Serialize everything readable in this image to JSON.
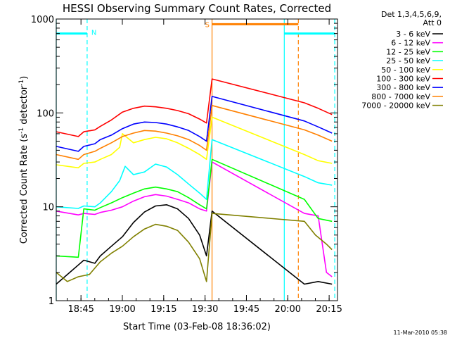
{
  "chart_data": {
    "type": "line",
    "title": "HESSI Observing Summary Count Rates, Corrected",
    "ylabel_prefix": "Corrected Count Rate (s",
    "ylabel_sup1": "-1",
    "ylabel_mid": " detector",
    "ylabel_sup2": "-1",
    "ylabel_suffix": ")",
    "xlabel": "Start Time (03-Feb-08 18:36:02)",
    "yscale": "log",
    "ylim": [
      1,
      1000
    ],
    "xlim": [
      0,
      102
    ],
    "xlim_note": "minutes since 18:36:02",
    "x_ticks": [
      {
        "label": "18:45",
        "value": 8.97
      },
      {
        "label": "19:00",
        "value": 23.97
      },
      {
        "label": "19:15",
        "value": 38.97
      },
      {
        "label": "19:30",
        "value": 53.97
      },
      {
        "label": "19:45",
        "value": 68.97
      },
      {
        "label": "20:00",
        "value": 83.97
      },
      {
        "label": "20:15",
        "value": 98.97
      }
    ],
    "y_ticks": [
      {
        "label": "1",
        "value": 1
      },
      {
        "label": "10",
        "value": 10
      },
      {
        "label": "100",
        "value": 100
      },
      {
        "label": "1000",
        "value": 1000
      }
    ],
    "legend_header": [
      "Det 1,3,4,5,6,9,",
      "Att 0"
    ],
    "legend_position": "outside-right",
    "footer": "11-Mar-2010 05:38",
    "series": [
      {
        "name": "3 - 6 keV",
        "color": "#000000",
        "x": [
          0,
          8,
          10,
          14,
          16,
          20,
          24,
          28,
          32,
          36,
          40,
          44,
          48,
          52,
          54.5,
          56.5,
          90,
          95,
          100
        ],
        "y": [
          1.5,
          2.4,
          2.7,
          2.5,
          3.0,
          3.8,
          4.8,
          6.8,
          8.8,
          10.2,
          10.5,
          9.5,
          7.5,
          5.0,
          3.0,
          9.0,
          1.5,
          1.6,
          1.5
        ]
      },
      {
        "name": "6 - 12 keV",
        "color": "#ff00ff",
        "x": [
          0,
          8,
          10,
          14,
          16,
          20,
          24,
          28,
          32,
          36,
          40,
          44,
          48,
          52,
          54.5,
          56.5,
          90,
          95,
          98,
          100
        ],
        "y": [
          9.0,
          8.2,
          8.5,
          8.3,
          8.7,
          9.2,
          10.0,
          11.5,
          12.8,
          13.5,
          13.0,
          12.0,
          11.0,
          9.5,
          9.0,
          30,
          8.5,
          8.0,
          2.0,
          1.8
        ]
      },
      {
        "name": "12 - 25 keV",
        "color": "#00ff00",
        "x": [
          0,
          8,
          10,
          14,
          16,
          20,
          24,
          28,
          32,
          36,
          40,
          44,
          48,
          52,
          54.5,
          56.5,
          90,
          95,
          100
        ],
        "y": [
          3.0,
          2.9,
          9.5,
          9.2,
          9.8,
          11.0,
          12.5,
          14.0,
          15.5,
          16.2,
          15.5,
          14.5,
          12.5,
          10.5,
          9.5,
          32,
          12.0,
          7.5,
          7.0
        ]
      },
      {
        "name": "25 - 50 keV",
        "color": "#00ffff",
        "x": [
          0,
          8,
          10,
          14,
          16,
          20,
          23,
          25,
          28,
          32,
          36,
          40,
          44,
          48,
          52,
          54.5,
          56.5,
          90,
          95,
          100
        ],
        "y": [
          10.0,
          9.6,
          10.2,
          10.0,
          11.0,
          14.5,
          19.0,
          27.0,
          22.0,
          23.5,
          28.5,
          26.5,
          22.0,
          17.5,
          14.0,
          12.0,
          52,
          21.0,
          18.0,
          17.0
        ]
      },
      {
        "name": "50 - 100 keV",
        "color": "#ffff00",
        "x": [
          0,
          8,
          10,
          14,
          16,
          20,
          23,
          24,
          28,
          32,
          36,
          40,
          44,
          48,
          52,
          54.5,
          56.5,
          90,
          95,
          100
        ],
        "y": [
          28,
          26,
          29,
          30,
          32,
          36,
          43,
          60,
          48,
          52,
          55,
          53,
          48,
          42,
          36,
          32,
          90,
          36,
          31,
          29
        ]
      },
      {
        "name": "100 - 300 keV",
        "color": "#ff0000",
        "x": [
          0,
          8,
          10,
          14,
          16,
          20,
          24,
          28,
          32,
          36,
          40,
          44,
          48,
          52,
          54.5,
          56.5,
          90,
          95,
          100
        ],
        "y": [
          63,
          56,
          63,
          66,
          72,
          84,
          102,
          112,
          118,
          116,
          112,
          106,
          98,
          86,
          78,
          230,
          128,
          112,
          96
        ]
      },
      {
        "name": "300 - 800 keV",
        "color": "#0000ff",
        "x": [
          0,
          8,
          10,
          14,
          16,
          20,
          24,
          28,
          32,
          36,
          40,
          44,
          48,
          52,
          54.5,
          56.5,
          90,
          95,
          100
        ],
        "y": [
          44,
          39,
          44,
          47,
          52,
          58,
          68,
          76,
          80,
          79,
          76,
          71,
          65,
          56,
          50,
          150,
          82,
          71,
          61
        ]
      },
      {
        "name": "800 - 7000 keV",
        "color": "#ff8000",
        "x": [
          0,
          8,
          10,
          14,
          16,
          20,
          24,
          28,
          32,
          36,
          40,
          44,
          48,
          52,
          54.5,
          56.5,
          90,
          95,
          100
        ],
        "y": [
          36,
          32,
          36,
          39,
          42,
          48,
          56,
          61,
          65,
          64,
          61,
          57,
          52,
          45,
          40,
          120,
          66,
          58,
          50
        ]
      },
      {
        "name": "7000 - 20000 keV",
        "color": "#808000",
        "x": [
          0,
          4,
          8,
          12,
          16,
          20,
          24,
          28,
          32,
          36,
          40,
          44,
          48,
          52,
          54.5,
          56.5,
          90,
          94,
          98,
          100
        ],
        "y": [
          2.0,
          1.6,
          1.8,
          1.9,
          2.6,
          3.2,
          3.8,
          4.8,
          5.8,
          6.5,
          6.2,
          5.6,
          4.2,
          2.8,
          1.6,
          8.5,
          7.0,
          5.0,
          4.0,
          3.5
        ]
      }
    ],
    "annotations": {
      "night_bars": [
        {
          "label": "N",
          "color": "#00ffff",
          "x_start": 0,
          "x_end": 11.2,
          "y": 700
        },
        {
          "label": "",
          "color": "#00ffff",
          "x_start": 82.7,
          "x_end": 101,
          "y": 700
        }
      ],
      "saa_bar": {
        "label": "S",
        "color": "#ff8000",
        "x_start": 56.5,
        "x_end": 87.8,
        "y": 880
      },
      "vlines": [
        {
          "x": 0,
          "color": "#00ffff",
          "style": "solid"
        },
        {
          "x": 11.2,
          "color": "#00ffff",
          "style": "dashed"
        },
        {
          "x": 56.5,
          "color": "#ff8000",
          "style": "solid"
        },
        {
          "x": 82.7,
          "color": "#00ffff",
          "style": "solid"
        },
        {
          "x": 87.8,
          "color": "#ff8000",
          "style": "dashed"
        },
        {
          "x": 101,
          "color": "#00ffff",
          "style": "dashed"
        }
      ]
    }
  }
}
